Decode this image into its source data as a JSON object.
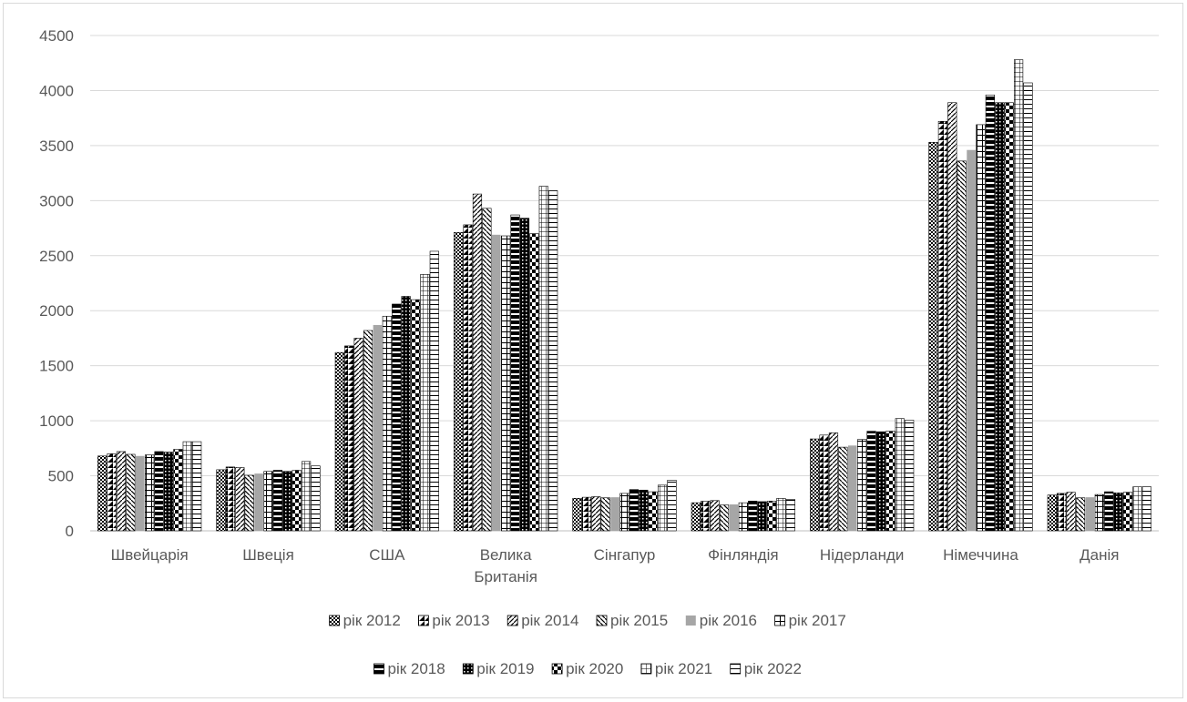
{
  "chart_data": {
    "type": "bar",
    "title": "",
    "xlabel": "",
    "ylabel": "",
    "ylim": [
      0,
      4500
    ],
    "yticks": [
      0,
      500,
      1000,
      1500,
      2000,
      2500,
      3000,
      3500,
      4000,
      4500
    ],
    "grid": true,
    "legend_position": "bottom",
    "categories": [
      "Швейцарія",
      "Швеція",
      "США",
      "Велика Британія",
      "Сінгапур",
      "Фінляндія",
      "Нідерланди",
      "Німеччина",
      "Данія"
    ],
    "category_label_lines": [
      [
        "Швейцарія"
      ],
      [
        "Швеція"
      ],
      [
        "США"
      ],
      [
        "Велика",
        "Британія"
      ],
      [
        "Сінгапур"
      ],
      [
        "Фінляндія"
      ],
      [
        "Нідерланди"
      ],
      [
        "Німеччина"
      ],
      [
        "Данія"
      ]
    ],
    "series": [
      {
        "name": "рік 2012",
        "pattern": "checker",
        "values": [
          680,
          555,
          1620,
          2710,
          295,
          255,
          835,
          3530,
          325
        ]
      },
      {
        "name": "рік 2013",
        "pattern": "half-diag",
        "values": [
          700,
          580,
          1680,
          2780,
          305,
          270,
          870,
          3720,
          340
        ]
      },
      {
        "name": "рік 2014",
        "pattern": "fwd-diag",
        "values": [
          720,
          575,
          1750,
          3060,
          310,
          275,
          890,
          3890,
          350
        ]
      },
      {
        "name": "рік 2015",
        "pattern": "back-diag",
        "values": [
          695,
          505,
          1820,
          2930,
          300,
          235,
          760,
          3360,
          300
        ]
      },
      {
        "name": "рік 2016",
        "pattern": "solid-gray",
        "values": [
          680,
          520,
          1870,
          2690,
          305,
          240,
          775,
          3460,
          305
        ]
      },
      {
        "name": "рік 2017",
        "pattern": "grid",
        "values": [
          690,
          540,
          1950,
          2680,
          340,
          255,
          830,
          3690,
          330
        ]
      },
      {
        "name": "рік 2018",
        "pattern": "half-top",
        "values": [
          720,
          550,
          2060,
          2870,
          375,
          270,
          905,
          3960,
          355
        ]
      },
      {
        "name": "рік 2019",
        "pattern": "dots-dense",
        "values": [
          715,
          540,
          2130,
          2840,
          370,
          265,
          900,
          3890,
          345
        ]
      },
      {
        "name": "рік 2020",
        "pattern": "checker-large",
        "values": [
          740,
          550,
          2100,
          2700,
          355,
          270,
          905,
          3890,
          350
        ]
      },
      {
        "name": "рік 2021",
        "pattern": "fine-grid",
        "values": [
          810,
          630,
          2330,
          3130,
          415,
          295,
          1020,
          4280,
          400
        ]
      },
      {
        "name": "рік 2022",
        "pattern": "hlines",
        "values": [
          810,
          590,
          2540,
          3090,
          460,
          285,
          1005,
          4070,
          400
        ]
      }
    ]
  }
}
